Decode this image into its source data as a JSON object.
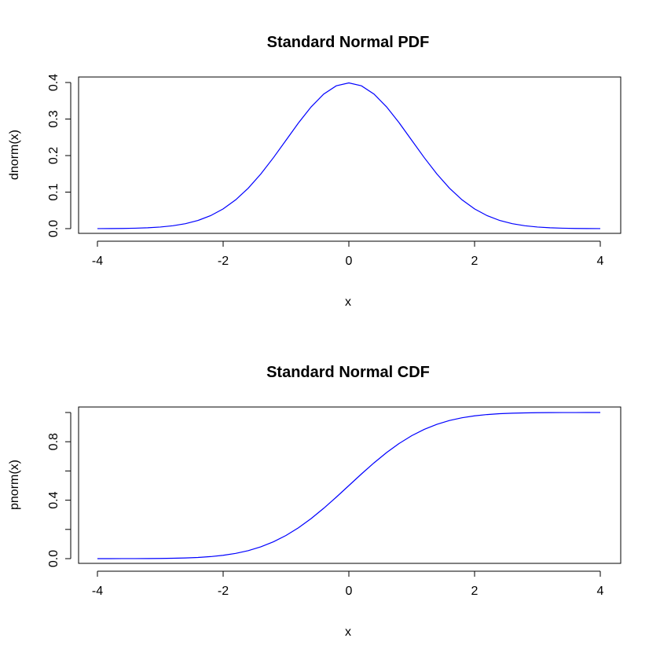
{
  "chart_data": [
    {
      "type": "line",
      "title": "Standard Normal PDF",
      "xlabel": "x",
      "ylabel": "dnorm(x)",
      "xlim": [
        -4,
        4
      ],
      "ylim": [
        0,
        0.4
      ],
      "grid": false,
      "xticks": [
        -4,
        -2,
        0,
        2,
        4
      ],
      "xtick_labels": [
        "-4",
        "-2",
        "0",
        "2",
        "4"
      ],
      "yticks": [
        0,
        0.1,
        0.2,
        0.3,
        0.4
      ],
      "ytick_labels": [
        "0.0",
        "0.1",
        "0.2",
        "0.3",
        "0.4"
      ],
      "series": [
        {
          "color": "#0000ff",
          "x": [
            -4,
            -3.8,
            -3.6,
            -3.4,
            -3.2,
            -3,
            -2.8,
            -2.6,
            -2.4,
            -2.2,
            -2,
            -1.8,
            -1.6,
            -1.4,
            -1.2,
            -1,
            -0.8,
            -0.6,
            -0.4,
            -0.2,
            0,
            0.2,
            0.4,
            0.6,
            0.8,
            1,
            1.2,
            1.4,
            1.6,
            1.8,
            2,
            2.2,
            2.4,
            2.6,
            2.8,
            3,
            3.2,
            3.4,
            3.6,
            3.8,
            4
          ],
          "y": [
            0.0001,
            0.0003,
            0.0006,
            0.0012,
            0.0024,
            0.0044,
            0.0079,
            0.0136,
            0.0224,
            0.0355,
            0.054,
            0.079,
            0.1109,
            0.1497,
            0.1942,
            0.242,
            0.2897,
            0.3332,
            0.3683,
            0.391,
            0.3989,
            0.391,
            0.3683,
            0.3332,
            0.2897,
            0.242,
            0.1942,
            0.1497,
            0.1109,
            0.079,
            0.054,
            0.0355,
            0.0224,
            0.0136,
            0.0079,
            0.0044,
            0.0024,
            0.0012,
            0.0006,
            0.0003,
            0.0001
          ]
        }
      ]
    },
    {
      "type": "line",
      "title": "Standard Normal CDF",
      "xlabel": "x",
      "ylabel": "pnorm(x)",
      "xlim": [
        -4,
        4
      ],
      "ylim": [
        0,
        1
      ],
      "grid": false,
      "xticks": [
        -4,
        -2,
        0,
        2,
        4
      ],
      "xtick_labels": [
        "-4",
        "-2",
        "0",
        "2",
        "4"
      ],
      "yticks": [
        0,
        0.2,
        0.4,
        0.6,
        0.8,
        1.0
      ],
      "ytick_labels": [
        "0.0",
        "",
        "0.4",
        "",
        "0.8",
        ""
      ],
      "series": [
        {
          "color": "#0000ff",
          "x": [
            -4,
            -3.8,
            -3.6,
            -3.4,
            -3.2,
            -3,
            -2.8,
            -2.6,
            -2.4,
            -2.2,
            -2,
            -1.8,
            -1.6,
            -1.4,
            -1.2,
            -1,
            -0.8,
            -0.6,
            -0.4,
            -0.2,
            0,
            0.2,
            0.4,
            0.6,
            0.8,
            1,
            1.2,
            1.4,
            1.6,
            1.8,
            2,
            2.2,
            2.4,
            2.6,
            2.8,
            3,
            3.2,
            3.4,
            3.6,
            3.8,
            4
          ],
          "y": [
            3e-05,
            0.0001,
            0.0002,
            0.0003,
            0.0007,
            0.0013,
            0.0026,
            0.0047,
            0.0082,
            0.0139,
            0.0228,
            0.0359,
            0.0548,
            0.0808,
            0.1151,
            0.1587,
            0.2119,
            0.2743,
            0.3446,
            0.4207,
            0.5,
            0.5793,
            0.6554,
            0.7257,
            0.7881,
            0.8413,
            0.8849,
            0.9192,
            0.9452,
            0.9641,
            0.9772,
            0.9861,
            0.9918,
            0.9953,
            0.9974,
            0.9987,
            0.9993,
            0.9997,
            0.9998,
            0.9999,
            0.99997
          ]
        }
      ]
    }
  ]
}
